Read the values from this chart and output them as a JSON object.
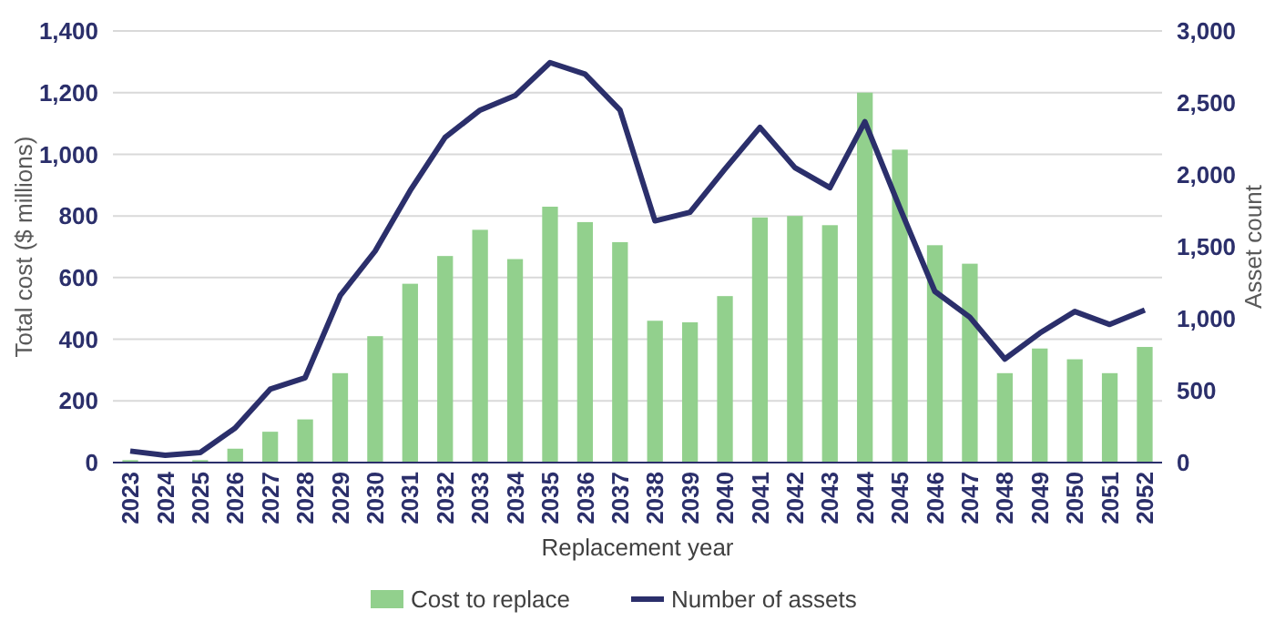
{
  "chart_data": {
    "type": "bar",
    "xlabel": "Replacement year",
    "ylabel": "Total cost ($ millions)",
    "y2label": "Asset count",
    "categories": [
      "2023",
      "2024",
      "2025",
      "2026",
      "2027",
      "2028",
      "2029",
      "2030",
      "2031",
      "2032",
      "2033",
      "2034",
      "2035",
      "2036",
      "2037",
      "2038",
      "2039",
      "2040",
      "2041",
      "2042",
      "2043",
      "2044",
      "2045",
      "2046",
      "2047",
      "2048",
      "2049",
      "2050",
      "2051",
      "2052"
    ],
    "series": [
      {
        "name": "Cost to replace",
        "color": "#92d08d",
        "values": [
          8,
          0,
          8,
          45,
          100,
          140,
          290,
          410,
          580,
          670,
          755,
          660,
          830,
          780,
          715,
          460,
          455,
          540,
          795,
          800,
          770,
          1200,
          1015,
          705,
          645,
          290,
          370,
          335,
          290,
          375
        ]
      },
      {
        "name": "Number of assets",
        "type": "line",
        "axis": "y2",
        "color": "#2b2f6b",
        "values": [
          80,
          50,
          70,
          240,
          510,
          590,
          1160,
          1470,
          1890,
          2260,
          2450,
          2550,
          2780,
          2700,
          2450,
          1680,
          1740,
          2040,
          2330,
          2050,
          1910,
          2370,
          1770,
          1190,
          1010,
          720,
          900,
          1050,
          960,
          1060
        ]
      }
    ],
    "ylim": [
      0,
      1400
    ],
    "yticks": [
      {
        "value": 0,
        "label": "0"
      },
      {
        "value": 200,
        "label": "200"
      },
      {
        "value": 400,
        "label": "400"
      },
      {
        "value": 600,
        "label": "600"
      },
      {
        "value": 800,
        "label": "800"
      },
      {
        "value": 1000,
        "label": "1,000"
      },
      {
        "value": 1200,
        "label": "1,200"
      },
      {
        "value": 1400,
        "label": "1,400"
      }
    ],
    "y2lim": [
      0,
      3000
    ],
    "y2ticks": [
      {
        "value": 0,
        "label": "0"
      },
      {
        "value": 500,
        "label": "500"
      },
      {
        "value": 1000,
        "label": "1,000"
      },
      {
        "value": 1500,
        "label": "1,500"
      },
      {
        "value": 2000,
        "label": "2,000"
      },
      {
        "value": 2500,
        "label": "2,500"
      },
      {
        "value": 3000,
        "label": "3,000"
      }
    ],
    "grid": "y",
    "legend": "bottom",
    "marker": "none",
    "line_style": "solid"
  }
}
